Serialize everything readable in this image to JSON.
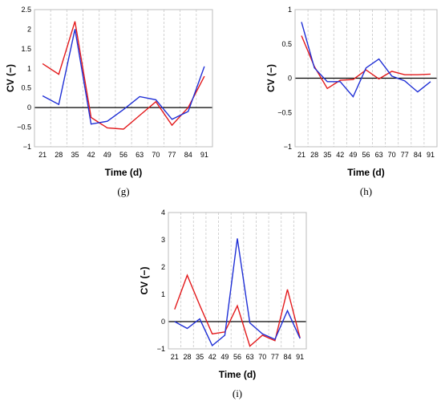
{
  "chart_data": [
    {
      "type": "line",
      "panel_label": "(g)",
      "xlabel": "Time (d)",
      "ylabel": "CV (−)",
      "categories": [
        "21",
        "28",
        "35",
        "42",
        "49",
        "56",
        "63",
        "70",
        "77",
        "84",
        "91"
      ],
      "yticks": [
        "−1",
        "−0.5",
        "0",
        "0.5",
        "1",
        "1.5",
        "2",
        "2.5"
      ],
      "ylim": [
        -1,
        2.5
      ],
      "grid": "vertical dashed",
      "series": [
        {
          "color": "#e31a1c",
          "values": [
            1.12,
            0.85,
            2.2,
            -0.25,
            -0.52,
            -0.55,
            -0.2,
            0.15,
            -0.45,
            0.0,
            0.8
          ]
        },
        {
          "color": "#1f2fd6",
          "values": [
            0.3,
            0.08,
            2.0,
            -0.42,
            -0.35,
            -0.05,
            0.28,
            0.2,
            -0.3,
            -0.1,
            1.05
          ]
        }
      ]
    },
    {
      "type": "line",
      "panel_label": "(h)",
      "xlabel": "Time (d)",
      "ylabel": "CV (−)",
      "categories": [
        "21",
        "28",
        "35",
        "42",
        "49",
        "56",
        "63",
        "70",
        "77",
        "84",
        "91"
      ],
      "yticks": [
        "−1",
        "−0.5",
        "0",
        "0.5",
        "1"
      ],
      "ylim": [
        -1,
        1
      ],
      "grid": "vertical dashed",
      "series": [
        {
          "color": "#e31a1c",
          "values": [
            0.62,
            0.17,
            -0.15,
            -0.03,
            -0.02,
            0.12,
            -0.01,
            0.1,
            0.05,
            0.05,
            0.06
          ]
        },
        {
          "color": "#1f2fd6",
          "values": [
            0.82,
            0.15,
            -0.05,
            -0.05,
            -0.27,
            0.15,
            0.28,
            0.03,
            -0.04,
            -0.2,
            -0.05
          ]
        }
      ]
    },
    {
      "type": "line",
      "panel_label": "(i)",
      "xlabel": "Time (d)",
      "ylabel": "CV (−)",
      "categories": [
        "21",
        "28",
        "35",
        "42",
        "49",
        "56",
        "63",
        "70",
        "77",
        "84",
        "91"
      ],
      "yticks": [
        "−1",
        "0",
        "1",
        "2",
        "3",
        "4"
      ],
      "ylim": [
        -1,
        4
      ],
      "grid": "vertical dashed",
      "series": [
        {
          "color": "#e31a1c",
          "values": [
            0.45,
            1.7,
            0.6,
            -0.45,
            -0.38,
            0.58,
            -0.9,
            -0.5,
            -0.7,
            1.18,
            -0.6
          ]
        },
        {
          "color": "#1f2fd6",
          "values": [
            0.0,
            -0.25,
            0.1,
            -0.88,
            -0.5,
            3.05,
            -0.05,
            -0.45,
            -0.65,
            0.4,
            -0.62
          ]
        }
      ]
    }
  ]
}
